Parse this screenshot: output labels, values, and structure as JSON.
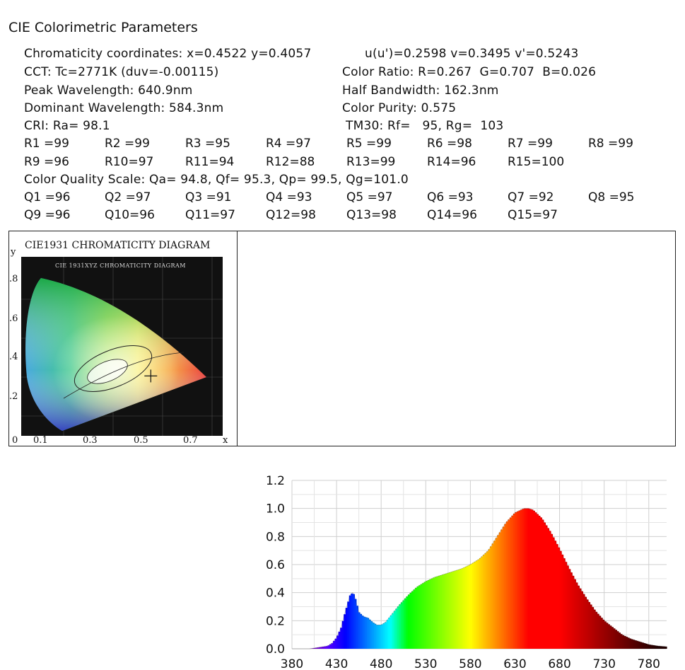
{
  "title": "CIE Colorimetric Parameters",
  "params": {
    "chromaticity": "Chromaticity coordinates: x=0.4522 y=0.4057",
    "uv": "u(u')=0.2598 v=0.3495 v'=0.5243",
    "cct": "CCT: Tc=2771K (duv=-0.00115)",
    "color_ratio": "Color Ratio: R=0.267  G=0.707  B=0.026",
    "peak": "Peak Wavelength: 640.9nm",
    "half_bw": "Half Bandwidth: 162.3nm",
    "dominant": "Dominant Wavelength: 584.3nm",
    "purity": "Color Purity: 0.575",
    "cri": "CRI: Ra= 98.1",
    "tm30": "TM30: Rf=   95, Rg=  103",
    "cqs": "Color Quality Scale: Qa= 94.8, Qf= 95.3, Qp= 99.5, Qg=101.0"
  },
  "r_row1": [
    "R1 =99",
    "R2 =99",
    "R3 =95",
    "R4 =97",
    "R5 =99",
    "R6 =98",
    "R7 =99",
    "R8 =99"
  ],
  "r_row2": [
    "R9 =96",
    "R10=97",
    "R11=94",
    "R12=88",
    "R13=99",
    "R14=96",
    "R15=100"
  ],
  "q_row1": [
    "Q1 =96",
    "Q2 =97",
    "Q3 =91",
    "Q4 =93",
    "Q5 =97",
    "Q6 =93",
    "Q7 =92",
    "Q8 =95"
  ],
  "q_row2": [
    "Q9 =96",
    "Q10=96",
    "Q11=97",
    "Q12=98",
    "Q13=98",
    "Q14=96",
    "Q15=97"
  ],
  "cie": {
    "title": "CIE1931 CHROMATICITY DIAGRAM",
    "inner_title": "CIE 1931XYZ CHROMATICITY DIAGRAM",
    "y_label": "y",
    "x_label": "x",
    "y_ticks": [
      ".8",
      ".6",
      ".4",
      ".2"
    ],
    "x_ticks": [
      "0",
      "0.1",
      "0.3",
      "0.5",
      "0.7"
    ],
    "point": {
      "x": 0.4522,
      "y": 0.4057
    }
  },
  "chart_data": {
    "type": "area",
    "title": "",
    "xlabel": "",
    "ylabel": "",
    "xlim": [
      380,
      800
    ],
    "ylim": [
      0,
      1.2
    ],
    "x_ticks": [
      "380",
      "430",
      "480",
      "530",
      "580",
      "630",
      "680",
      "730",
      "780"
    ],
    "y_ticks": [
      "0.0",
      "0.2",
      "0.4",
      "0.6",
      "0.8",
      "1.0",
      "1.2"
    ],
    "grid": true,
    "series": [
      {
        "x": [
          380,
          400,
          410,
          420,
          425,
          430,
          435,
          440,
          445,
          448,
          450,
          452,
          455,
          460,
          465,
          470,
          475,
          480,
          485,
          490,
          500,
          510,
          520,
          530,
          540,
          550,
          560,
          570,
          580,
          590,
          600,
          610,
          620,
          630,
          640,
          645,
          650,
          660,
          670,
          680,
          690,
          700,
          710,
          720,
          730,
          740,
          750,
          760,
          770,
          780,
          790,
          800
        ],
        "values": [
          0.0,
          0.0,
          0.01,
          0.02,
          0.04,
          0.08,
          0.15,
          0.27,
          0.38,
          0.4,
          0.38,
          0.33,
          0.26,
          0.23,
          0.22,
          0.19,
          0.17,
          0.17,
          0.19,
          0.23,
          0.31,
          0.38,
          0.44,
          0.48,
          0.51,
          0.53,
          0.55,
          0.57,
          0.6,
          0.64,
          0.7,
          0.8,
          0.9,
          0.97,
          1.0,
          1.0,
          0.99,
          0.93,
          0.83,
          0.71,
          0.58,
          0.46,
          0.36,
          0.27,
          0.2,
          0.15,
          0.1,
          0.07,
          0.05,
          0.03,
          0.02,
          0.015
        ]
      }
    ]
  }
}
